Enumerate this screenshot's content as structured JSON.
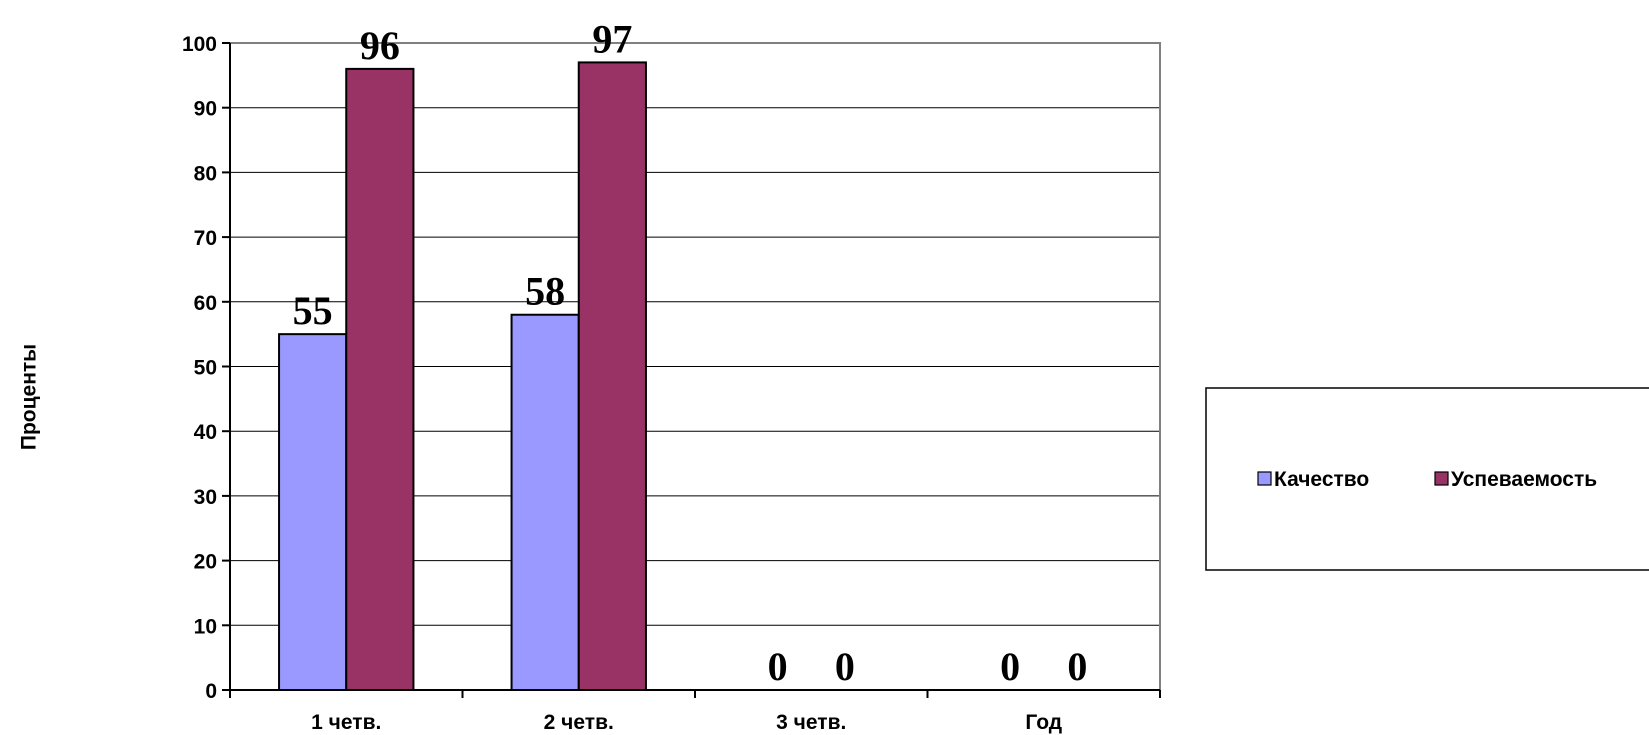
{
  "chart_data": {
    "type": "bar",
    "categories": [
      "1 четв.",
      "2 четв.",
      "3 четв.",
      "Год"
    ],
    "series": [
      {
        "name": "Качество",
        "values": [
          55,
          58,
          0,
          0
        ],
        "data_labels": [
          "55",
          "58",
          "0",
          "0"
        ],
        "color": "#9999ff"
      },
      {
        "name": "Успеваемость",
        "values": [
          96,
          97,
          0,
          0
        ],
        "data_labels": [
          "96",
          "97",
          "0",
          "0"
        ],
        "color": "#993366"
      }
    ],
    "ylabel": "Проценты",
    "xlabel": "",
    "ylim": [
      0,
      100
    ],
    "yticks": [
      "0",
      "10",
      "20",
      "30",
      "40",
      "50",
      "60",
      "70",
      "80",
      "90",
      "100"
    ],
    "grid": true,
    "legend_position": "right"
  }
}
